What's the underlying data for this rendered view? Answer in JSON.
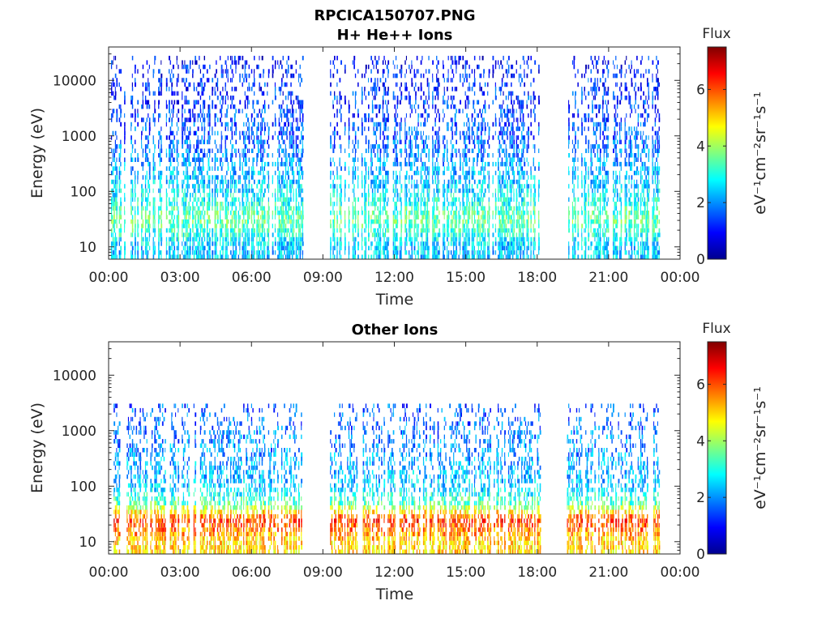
{
  "figure_title": "RPCICA150707.PNG",
  "colorbar": {
    "title": "Flux",
    "label": "eV⁻¹cm⁻²sr⁻¹s⁻¹",
    "ticks": [
      "0",
      "2",
      "4",
      "6"
    ],
    "range": [
      0,
      7.5
    ]
  },
  "chart_data": [
    {
      "type": "heatmap",
      "title": "H+ He++ Ions",
      "xlabel": "Time",
      "ylabel": "Energy (eV)",
      "x_ticks": [
        "00:00",
        "03:00",
        "06:00",
        "09:00",
        "12:00",
        "15:00",
        "18:00",
        "21:00",
        "00:00"
      ],
      "x_range_hours": [
        0,
        24
      ],
      "y_ticks": [
        "10",
        "100",
        "1000",
        "10000"
      ],
      "y_scale": "log",
      "y_range": [
        6,
        40000
      ],
      "data_intervals_hours": [
        [
          0.1,
          8.15
        ],
        [
          9.3,
          18.15
        ],
        [
          19.25,
          23.1
        ]
      ],
      "energy_profile": [
        {
          "energy": 10,
          "flux": 2.4
        },
        {
          "energy": 30,
          "flux": 3.6
        },
        {
          "energy": 100,
          "flux": 2.6
        },
        {
          "energy": 1000,
          "flux": 1.6
        },
        {
          "energy": 10000,
          "flux": 1.2
        },
        {
          "energy": 30000,
          "flux": 1.0
        }
      ]
    },
    {
      "type": "heatmap",
      "title": "Other Ions",
      "xlabel": "Time",
      "ylabel": "Energy (eV)",
      "x_ticks": [
        "00:00",
        "03:00",
        "06:00",
        "09:00",
        "12:00",
        "15:00",
        "18:00",
        "21:00",
        "00:00"
      ],
      "x_range_hours": [
        0,
        24
      ],
      "y_ticks": [
        "10",
        "100",
        "1000",
        "10000"
      ],
      "y_scale": "log",
      "y_range": [
        6,
        40000
      ],
      "data_intervals_hours": [
        [
          0.1,
          8.15
        ],
        [
          9.3,
          18.15
        ],
        [
          19.25,
          23.1
        ]
      ],
      "energy_profile": [
        {
          "energy": 10,
          "flux": 5.0
        },
        {
          "energy": 25,
          "flux": 6.2
        },
        {
          "energy": 50,
          "flux": 3.4
        },
        {
          "energy": 100,
          "flux": 2.4
        },
        {
          "energy": 1000,
          "flux": 1.8
        },
        {
          "energy": 3000,
          "flux": 1.5
        }
      ]
    }
  ]
}
